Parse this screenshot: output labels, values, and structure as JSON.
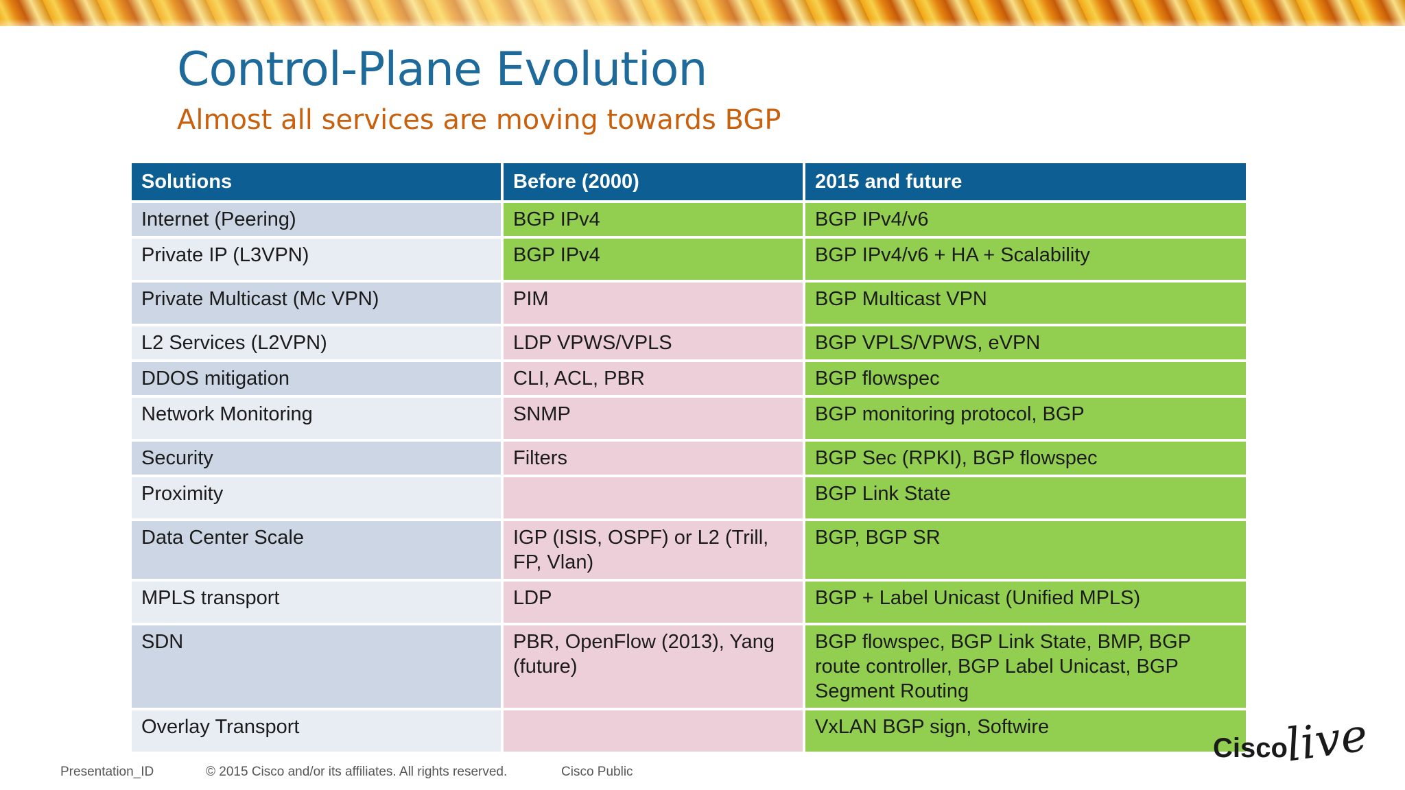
{
  "slide": {
    "title": "Control-Plane Evolution",
    "subtitle": "Almost all services are moving towards BGP"
  },
  "table": {
    "headers": [
      "Solutions",
      "Before (2000)",
      "2015  and future"
    ],
    "rows": [
      {
        "solution": "Internet (Peering)",
        "before": "BGP IPv4",
        "future": "BGP IPv4/v6",
        "before_color": "green"
      },
      {
        "solution": "Private IP (L3VPN)",
        "before": "BGP IPv4",
        "future": "BGP IPv4/v6 + HA + Scalability",
        "before_color": "green"
      },
      {
        "solution": "Private Multicast (Mc VPN)",
        "before": "PIM",
        "future": "BGP Multicast VPN",
        "before_color": "pink"
      },
      {
        "solution": "L2 Services (L2VPN)",
        "before": "LDP VPWS/VPLS",
        "future": "BGP VPLS/VPWS, eVPN",
        "before_color": "pink"
      },
      {
        "solution": "DDOS mitigation",
        "before": "CLI, ACL, PBR",
        "future": "BGP flowspec",
        "before_color": "pink"
      },
      {
        "solution": "Network Monitoring",
        "before": "SNMP",
        "future": "BGP monitoring protocol, BGP",
        "before_color": "pink"
      },
      {
        "solution": "Security",
        "before": "Filters",
        "future": "BGP Sec (RPKI), BGP flowspec",
        "before_color": "pink"
      },
      {
        "solution": "Proximity",
        "before": "",
        "future": "BGP Link State",
        "before_color": "pink"
      },
      {
        "solution": "Data Center Scale",
        "before": "IGP (ISIS, OSPF) or L2 (Trill, FP, Vlan)",
        "future": "BGP, BGP SR",
        "before_color": "pink"
      },
      {
        "solution": "MPLS transport",
        "before": "LDP",
        "future": "BGP + Label Unicast (Unified MPLS)",
        "before_color": "pink"
      },
      {
        "solution": "SDN",
        "before": "PBR, OpenFlow (2013), Yang (future)",
        "future": "BGP flowspec, BGP Link State, BMP, BGP route controller, BGP Label Unicast, BGP Segment Routing",
        "before_color": "pink"
      },
      {
        "solution": "Overlay Transport",
        "before": "",
        "future": "VxLAN BGP sign, Softwire",
        "before_color": "pink"
      }
    ]
  },
  "footer": {
    "presentation_id": "Presentation_ID",
    "copyright": "© 2015 Cisco and/or its affiliates. All rights reserved.",
    "classification": "Cisco Public"
  },
  "logo": {
    "brand": "Cisco",
    "script": "live!",
    "icon": "cisco-live-logo"
  },
  "colors": {
    "title": "#1d6a9b",
    "subtitle": "#c8610e",
    "header": "#0d5e92",
    "green": "#92cf50",
    "pink": "#eccfd9",
    "solution_odd": "#ccd6e4",
    "solution_even": "#e8ecf3"
  }
}
